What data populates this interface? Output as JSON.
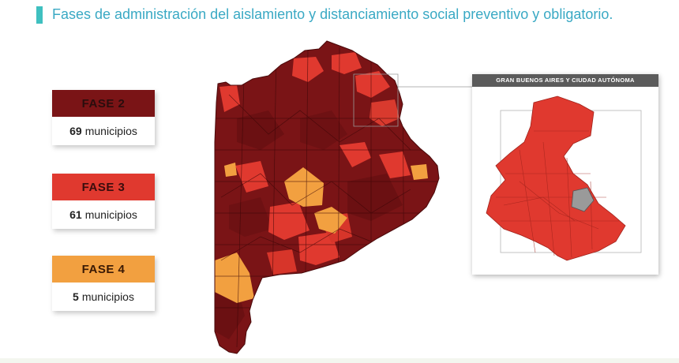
{
  "header": {
    "title": "Fases de administración del aislamiento y distanciamiento social preventivo y obligatorio."
  },
  "legend": [
    {
      "phase_label": "FASE 2",
      "count": "69",
      "unit": "municipios",
      "color": "#7a1416"
    },
    {
      "phase_label": "FASE 3",
      "count": "61",
      "unit": "municipios",
      "color": "#e0392f"
    },
    {
      "phase_label": "FASE 4",
      "count": "5",
      "unit": "municipios",
      "color": "#f2a040"
    }
  ],
  "inset": {
    "title": "GRAN BUENOS AIRES Y CIUDAD AUTÓNOMA"
  },
  "colors": {
    "fase2": "#7a1416",
    "fase3": "#e0392f",
    "fase4": "#f2a040",
    "caba": "#9a9a9a",
    "accent": "#3fc0c0"
  }
}
